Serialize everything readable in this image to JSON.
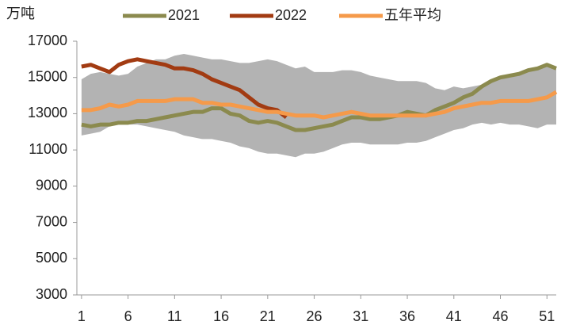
{
  "chart_data": {
    "type": "line",
    "y_unit": "万吨",
    "x": [
      1,
      2,
      3,
      4,
      5,
      6,
      7,
      8,
      9,
      10,
      11,
      12,
      13,
      14,
      15,
      16,
      17,
      18,
      19,
      20,
      21,
      22,
      23,
      24,
      25,
      26,
      27,
      28,
      29,
      30,
      31,
      32,
      33,
      34,
      35,
      36,
      37,
      38,
      39,
      40,
      41,
      42,
      43,
      44,
      45,
      46,
      47,
      48,
      49,
      50,
      51,
      52
    ],
    "band": {
      "color": "#b3b3b3",
      "upper": [
        14900,
        15200,
        15300,
        15200,
        15100,
        15200,
        15600,
        15800,
        16000,
        16000,
        16200,
        16300,
        16200,
        16100,
        16000,
        16000,
        15900,
        15800,
        15800,
        15900,
        16000,
        15900,
        15700,
        15500,
        15600,
        15300,
        15300,
        15300,
        15400,
        15400,
        15300,
        15100,
        15000,
        14900,
        14800,
        14800,
        14800,
        14700,
        14400,
        14300,
        14500,
        14400,
        14500,
        14600,
        14700,
        14900,
        15100,
        15200,
        15400,
        15500,
        15700,
        15500
      ],
      "lower": [
        11800,
        11900,
        12000,
        12300,
        12400,
        12400,
        12400,
        12300,
        12200,
        12100,
        12000,
        11800,
        11700,
        11600,
        11600,
        11500,
        11400,
        11200,
        11100,
        10900,
        10800,
        10800,
        10700,
        10600,
        10800,
        10800,
        10900,
        11100,
        11300,
        11400,
        11400,
        11300,
        11300,
        11300,
        11300,
        11400,
        11400,
        11500,
        11700,
        11900,
        12100,
        12200,
        12400,
        12500,
        12400,
        12500,
        12400,
        12400,
        12300,
        12200,
        12400,
        12400
      ]
    },
    "series": [
      {
        "name": "2021",
        "color": "#8b8a4e",
        "values": [
          12400,
          12300,
          12400,
          12400,
          12500,
          12500,
          12600,
          12600,
          12700,
          12800,
          12900,
          13000,
          13100,
          13100,
          13300,
          13300,
          13000,
          12900,
          12600,
          12500,
          12600,
          12500,
          12300,
          12100,
          12100,
          12200,
          12300,
          12400,
          12600,
          12800,
          12800,
          12700,
          12700,
          12800,
          12900,
          13100,
          13000,
          12900,
          13200,
          13400,
          13600,
          13900,
          14100,
          14500,
          14800,
          15000,
          15100,
          15200,
          15400,
          15500,
          15700,
          15500
        ]
      },
      {
        "name": "2022",
        "color": "#a23b12",
        "values": [
          15600,
          15700,
          15500,
          15300,
          15700,
          15900,
          16000,
          15900,
          15800,
          15700,
          15500,
          15500,
          15400,
          15200,
          14900,
          14700,
          14500,
          14300,
          13900,
          13500,
          13300,
          13200,
          12800,
          null,
          null,
          null,
          null,
          null,
          null,
          null,
          null,
          null,
          null,
          null,
          null,
          null,
          null,
          null,
          null,
          null,
          null,
          null,
          null,
          null,
          null,
          null,
          null,
          null,
          null,
          null,
          null,
          null
        ]
      },
      {
        "name": "五年平均",
        "color": "#f59a4a",
        "values": [
          13200,
          13200,
          13300,
          13500,
          13400,
          13500,
          13700,
          13700,
          13700,
          13700,
          13800,
          13800,
          13800,
          13600,
          13600,
          13500,
          13500,
          13400,
          13300,
          13200,
          13100,
          13100,
          13000,
          12900,
          12900,
          12900,
          12800,
          12900,
          13000,
          13100,
          13000,
          12900,
          12900,
          12900,
          12900,
          12900,
          12900,
          12900,
          13000,
          13100,
          13300,
          13400,
          13500,
          13600,
          13600,
          13700,
          13700,
          13700,
          13700,
          13800,
          13900,
          14200
        ]
      }
    ],
    "xlim": [
      0.5,
      52
    ],
    "xticks": [
      1,
      6,
      11,
      16,
      21,
      26,
      31,
      36,
      41,
      46,
      51
    ],
    "ylim": [
      3000,
      17000
    ],
    "yticks": [
      3000,
      5000,
      7000,
      9000,
      11000,
      13000,
      15000,
      17000
    ],
    "grid": false
  }
}
